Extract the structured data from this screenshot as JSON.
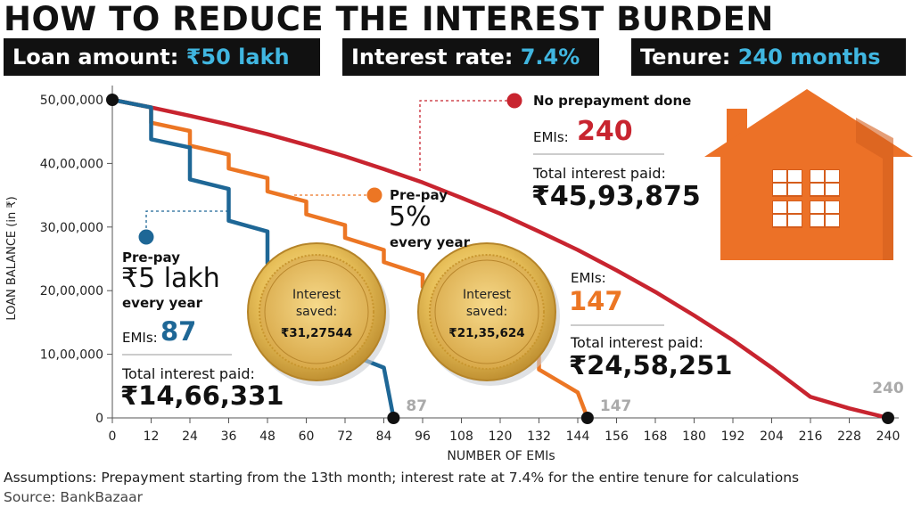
{
  "title": "HOW TO REDUCE THE INTEREST BURDEN",
  "pills": [
    {
      "label": "Loan amount:",
      "value": "₹50 lakh"
    },
    {
      "label": "Interest rate:",
      "value": "7.4%"
    },
    {
      "label": "Tenure:",
      "value": "240 months"
    }
  ],
  "colors": {
    "red": "#c8242f",
    "orange": "#ec7624",
    "blue": "#1e6796",
    "black": "#111111",
    "house": "#ec7127",
    "gold": "#e6be50"
  },
  "annotations": {
    "none": {
      "label": "No prepayment done",
      "emis_label": "EMIs:",
      "emis_value": "240",
      "total_label": "Total interest paid:",
      "total_value": "₹45,93,875"
    },
    "p5pct": {
      "pre": "Pre-pay",
      "amt": "5%",
      "freq": "every year",
      "emis_label": "EMIs:",
      "emis_value": "147",
      "total_label": "Total interest paid:",
      "total_value": "₹24,58,251"
    },
    "p5lakh": {
      "pre": "Pre-pay",
      "amt": "₹5 lakh",
      "freq": "every year",
      "emis_label": "EMIs:",
      "emis_value": "87",
      "total_label": "Total interest paid:",
      "total_value": "₹14,66,331"
    }
  },
  "coins": [
    {
      "label": "Interest saved:",
      "value": "₹31,27544"
    },
    {
      "label": "Interest saved:",
      "value": "₹21,35,624"
    }
  ],
  "footnote": "Assumptions: Prepayment starting from the 13th month; interest rate at 7.4% for the entire tenure for calculations",
  "source": "Source: BankBazaar",
  "chart_data": {
    "type": "line",
    "xlabel": "NUMBER OF EMIs",
    "ylabel": "LOAN BALANCE (in ₹)",
    "xlim": [
      0,
      240
    ],
    "ylim": [
      0,
      5000000
    ],
    "x_ticks": [
      0,
      12,
      24,
      36,
      48,
      60,
      72,
      84,
      96,
      108,
      120,
      132,
      144,
      156,
      168,
      180,
      192,
      204,
      216,
      228,
      240
    ],
    "y_ticks": [
      {
        "value": 0,
        "label": "0"
      },
      {
        "value": 1000000,
        "label": "10,00,000"
      },
      {
        "value": 2000000,
        "label": "20,00,000"
      },
      {
        "value": 3000000,
        "label": "30,00,000"
      },
      {
        "value": 4000000,
        "label": "40,00,000"
      },
      {
        "value": 5000000,
        "label": "50,00,000"
      }
    ],
    "end_labels": [
      "87",
      "147",
      "240"
    ],
    "series": [
      {
        "key": "none",
        "color": "#c8242f",
        "x": [
          0,
          12,
          24,
          36,
          48,
          60,
          72,
          84,
          96,
          108,
          120,
          132,
          144,
          156,
          168,
          180,
          192,
          204,
          216,
          228,
          240
        ],
        "y": [
          5000000,
          4880000,
          4750000,
          4610000,
          4460000,
          4290000,
          4110000,
          3910000,
          3700000,
          3460000,
          3210000,
          2930000,
          2640000,
          2320000,
          1980000,
          1610000,
          1220000,
          790000,
          330000,
          150000,
          0
        ]
      },
      {
        "key": "p5pct",
        "color": "#ec7624",
        "x": [
          0,
          12,
          12,
          24,
          24,
          36,
          36,
          48,
          48,
          60,
          60,
          72,
          72,
          84,
          84,
          96,
          96,
          108,
          108,
          120,
          120,
          132,
          132,
          144,
          147
        ],
        "y": [
          5000000,
          4880000,
          4640000,
          4510000,
          4280000,
          4140000,
          3920000,
          3770000,
          3560000,
          3400000,
          3200000,
          3030000,
          2830000,
          2640000,
          2450000,
          2250000,
          2060000,
          1840000,
          1640000,
          1410000,
          1210000,
          960000,
          760000,
          400000,
          0
        ]
      },
      {
        "key": "p5lakh",
        "color": "#1e6796",
        "x": [
          0,
          12,
          12,
          24,
          24,
          36,
          36,
          48,
          48,
          60,
          60,
          72,
          72,
          84,
          87
        ],
        "y": [
          5000000,
          4880000,
          4380000,
          4250000,
          3750000,
          3600000,
          3100000,
          2930000,
          2430000,
          2240000,
          1740000,
          1530000,
          1030000,
          790000,
          0
        ]
      }
    ]
  }
}
